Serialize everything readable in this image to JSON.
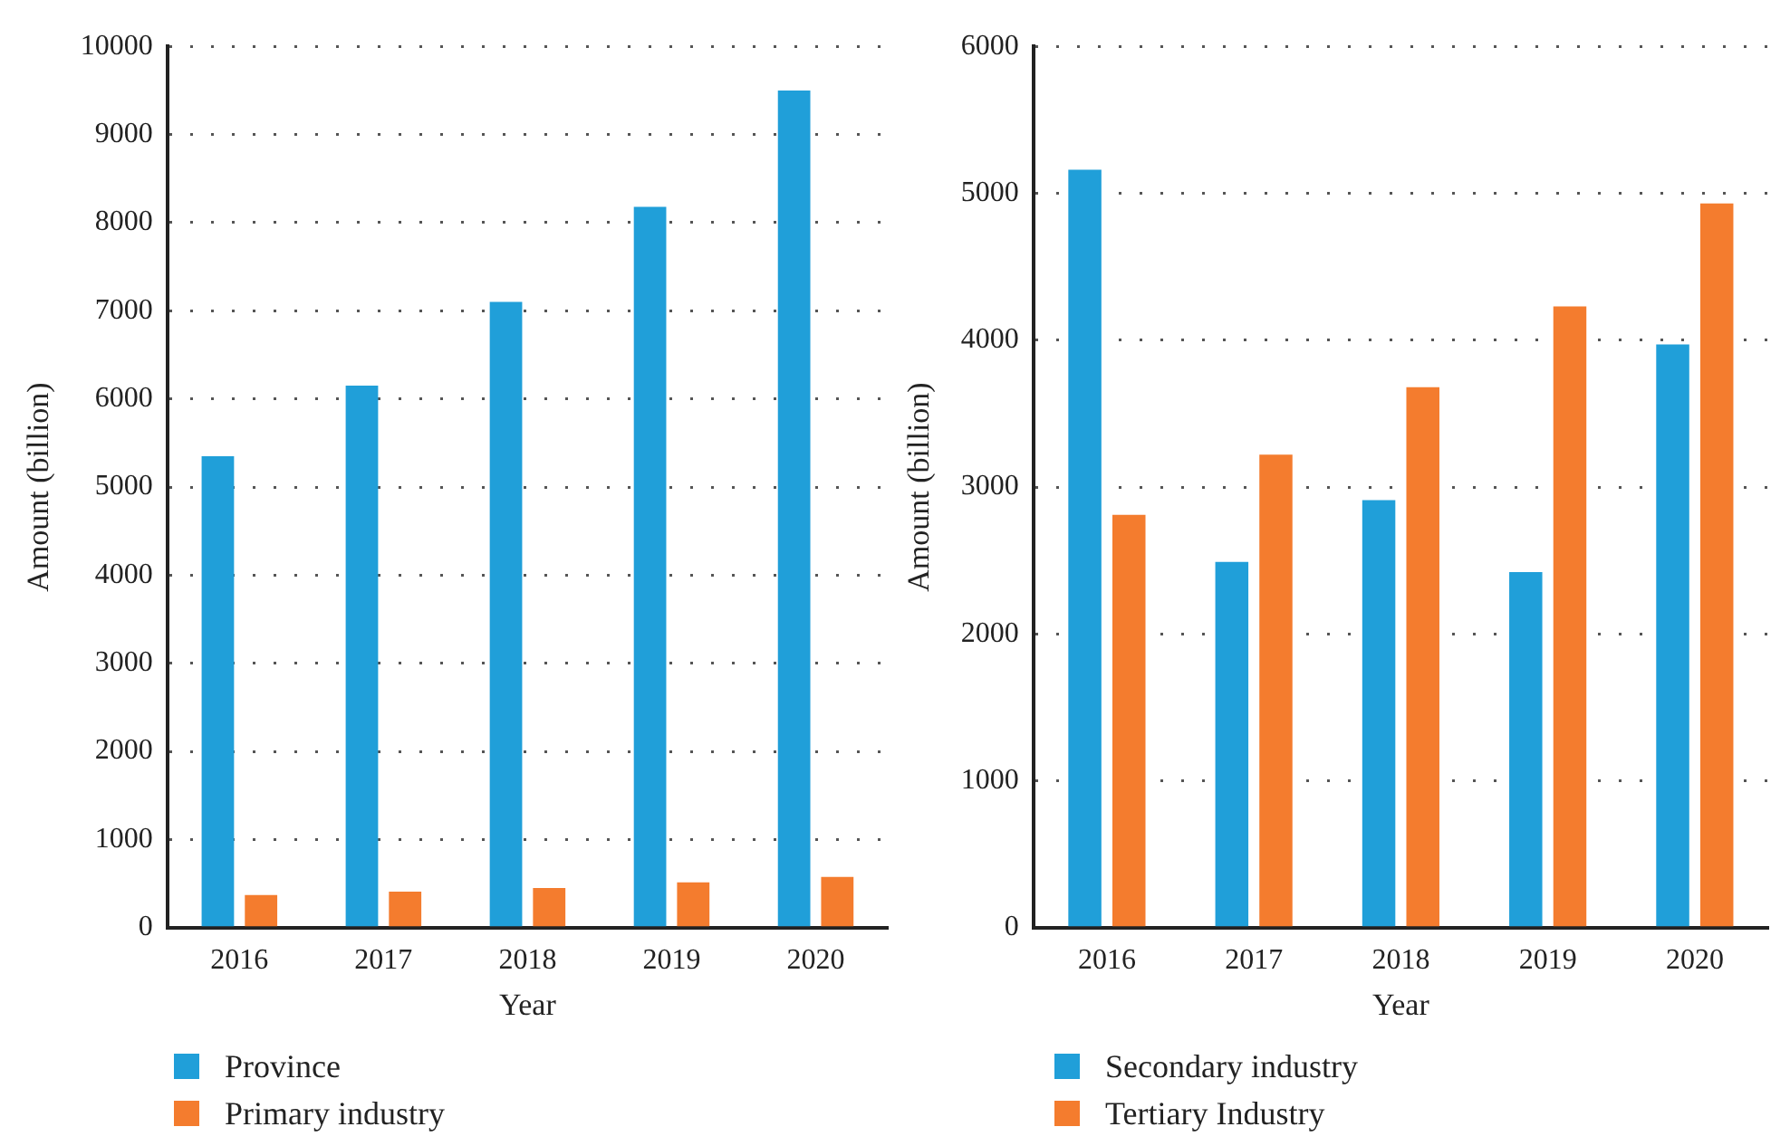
{
  "chart_data": [
    {
      "type": "bar",
      "categories": [
        "2016",
        "2017",
        "2018",
        "2019",
        "2020"
      ],
      "xlabel": "Year",
      "ylabel": "Amount (billion)",
      "ylim": [
        0,
        10000
      ],
      "yticks": [
        0,
        1000,
        2000,
        3000,
        4000,
        5000,
        6000,
        7000,
        8000,
        9000,
        10000
      ],
      "grid": "y",
      "legend": "bottom left",
      "series": [
        {
          "name": "Province",
          "color": "#209fd9",
          "values": [
            5350,
            6150,
            7100,
            8180,
            9500
          ]
        },
        {
          "name": "Primary industry",
          "color": "#f47c2e",
          "values": [
            370,
            410,
            450,
            515,
            575
          ]
        }
      ]
    },
    {
      "type": "bar",
      "categories": [
        "2016",
        "2017",
        "2018",
        "2019",
        "2020"
      ],
      "xlabel": "Year",
      "ylabel": "Amount (billion)",
      "ylim": [
        0,
        6000
      ],
      "yticks": [
        0,
        1000,
        2000,
        3000,
        4000,
        5000,
        6000
      ],
      "grid": "y",
      "legend": "bottom left",
      "series": [
        {
          "name": "Secondary industry",
          "color": "#209fd9",
          "values": [
            5160,
            2490,
            2910,
            2420,
            3970
          ]
        },
        {
          "name": "Tertiary Industry",
          "color": "#f47c2e",
          "values": [
            2810,
            3220,
            3680,
            4230,
            4930
          ]
        }
      ]
    }
  ]
}
